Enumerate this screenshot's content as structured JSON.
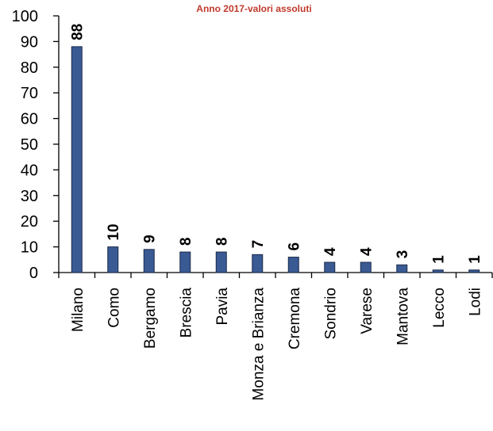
{
  "chart_data": {
    "type": "bar",
    "title": "Anno 2017-valori assoluti",
    "xlabel": "",
    "ylabel": "",
    "categories": [
      "Milano",
      "Como",
      "Bergamo",
      "Brescia",
      "Pavia",
      "Monza e Brianza",
      "Cremona",
      "Sondrio",
      "Varese",
      "Mantova",
      "Lecco",
      "Lodi"
    ],
    "values": [
      88,
      10,
      9,
      8,
      8,
      7,
      6,
      4,
      4,
      3,
      1,
      1
    ],
    "data_labels": [
      "88",
      "10",
      "9",
      "8",
      "8",
      "7",
      "6",
      "4",
      "4",
      "3",
      "1",
      "1"
    ],
    "yticks": [
      "0",
      "10",
      "20",
      "30",
      "40",
      "50",
      "60",
      "70",
      "80",
      "90",
      "100"
    ],
    "ylim": [
      0,
      100
    ],
    "grid": false,
    "legend": "none",
    "bar_color": "#3a5a94",
    "bar_edge_color": "#1b2a4a",
    "title_color": "#c0392b"
  }
}
